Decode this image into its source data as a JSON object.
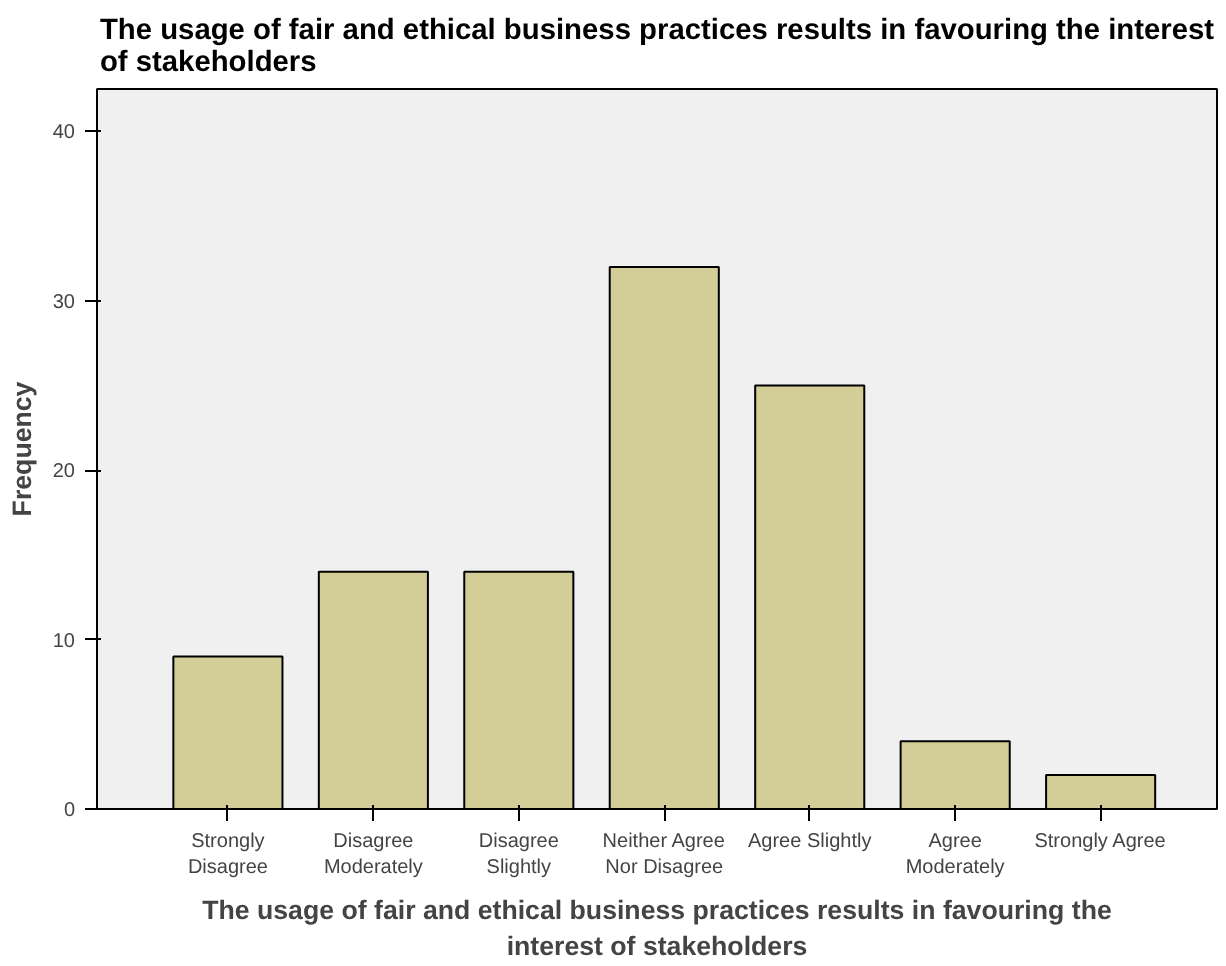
{
  "chart_data": {
    "type": "bar",
    "title": "The usage of fair and ethical business practices results in favouring the interest\nof stakeholders",
    "xlabel": "The usage of fair and ethical business practices results in favouring the\ninterest of stakeholders",
    "ylabel": "Frequency",
    "categories": [
      "Strongly\nDisagree",
      "Disagree\nModerately",
      "Disagree\nSlightly",
      "Neither Agree\nNor Disagree",
      "Agree Slightly",
      "Agree\nModerately",
      "Strongly Agree"
    ],
    "values": [
      9,
      14,
      14,
      32,
      25,
      4,
      2
    ],
    "color": "#d3ce97",
    "ylim": [
      0,
      42.5
    ],
    "yticks": [
      0,
      10,
      20,
      30,
      40
    ],
    "grid": false
  }
}
